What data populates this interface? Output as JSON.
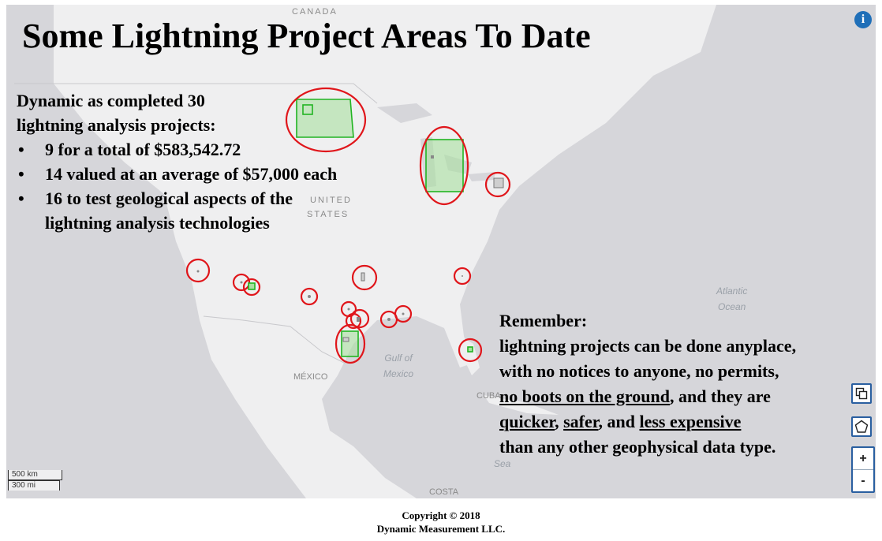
{
  "title": "Some Lightning Project Areas To Date",
  "map_labels": {
    "canada": "CANADA",
    "united_states_1": "UNITED",
    "united_states_2": "STATES",
    "mexico": "MÉXICO",
    "gulf_1": "Gulf of",
    "gulf_2": "Mexico",
    "atlantic_1": "Atlantic",
    "atlantic_2": "Ocean",
    "cuba": "CUBA",
    "sea": "Sea",
    "costa": "COSTA"
  },
  "intro": {
    "line1": "Dynamic as completed 30",
    "line2": "lightning analysis projects:",
    "bullet": "•",
    "items": [
      "9 for a total of $583,542.72",
      "14 valued at an average of $57,000 each",
      "16 to test geological aspects of the",
      "lightning analysis technologies"
    ]
  },
  "remember": {
    "heading": "Remember:",
    "line1": "lightning projects can be done anyplace,",
    "line2": "with no notices to anyone, no permits,",
    "line3_u": "no boots on the ground",
    "line3_rest": ", and they are",
    "line4_u1": "quicker",
    "line4_sep1": ", ",
    "line4_u2": "safer",
    "line4_sep2": ", and ",
    "line4_u3": "less expensive",
    "line5": "than any other geophysical data type."
  },
  "scale": {
    "km": "500 km",
    "mi": "300 mi"
  },
  "controls": {
    "info_label": "i",
    "zoom_in": "+",
    "zoom_out": "-",
    "icon_draw_rect": "copy-squares-icon",
    "icon_draw_polygon": "pentagon-icon"
  },
  "footer": {
    "line1": "Copyright  © 2018",
    "line2": "Dynamic Measurement LLC."
  },
  "colors": {
    "circle": "#e0161b",
    "area_stroke": "#22b422",
    "area_fill": "#a8e0a0",
    "control_border": "#2a5fa0"
  }
}
